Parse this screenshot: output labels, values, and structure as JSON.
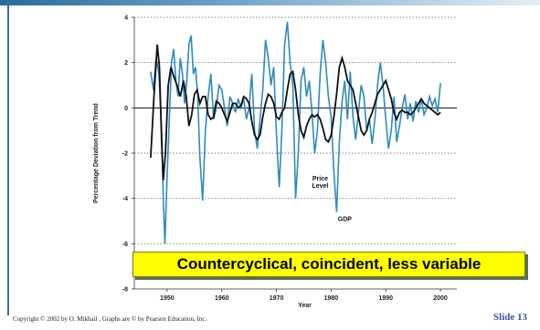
{
  "slide": {
    "callout": "Countercyclical, coincident, less variable",
    "copyright": "Copyright © 2002 by O. Mikhail , Graphs are © by Pearson Education, Inc.",
    "slide_number": "Slide 13",
    "colors": {
      "price_level": "#2e8bbf",
      "gdp": "#111111",
      "callout_bg": "#ffff00",
      "accent": "#3b6f9f"
    }
  },
  "chart_data": {
    "type": "line",
    "title": "",
    "xlabel": "Year",
    "ylabel": "Percentage Deviation from Trend",
    "xlim": [
      1944,
      2003
    ],
    "ylim": [
      -8,
      4
    ],
    "x_ticks": [
      "1950",
      "1960",
      "1970",
      "1980",
      "1990",
      "2000"
    ],
    "y_ticks": [
      "4",
      "2",
      "0",
      "-2",
      "-4",
      "-6",
      "-8"
    ],
    "grid": "horizontal dotted",
    "series": [
      {
        "name": "Price Level",
        "x": [
          1947,
          1947.5,
          1948,
          1948.5,
          1949,
          1949.3,
          1949.6,
          1950,
          1950.4,
          1950.8,
          1951.2,
          1951.6,
          1952,
          1952.4,
          1952.8,
          1953.2,
          1953.6,
          1954,
          1954.4,
          1954.8,
          1955.2,
          1955.6,
          1956,
          1956.5,
          1957,
          1957.5,
          1958,
          1958.5,
          1959,
          1959.5,
          1960,
          1960.5,
          1961,
          1961.5,
          1962,
          1962.5,
          1963,
          1963.5,
          1964,
          1964.5,
          1965,
          1965.5,
          1966,
          1966.5,
          1967,
          1967.5,
          1968,
          1968.5,
          1969,
          1969.5,
          1970,
          1970.5,
          1971,
          1971.5,
          1972,
          1972.5,
          1973,
          1973.5,
          1974,
          1974.5,
          1975,
          1975.5,
          1976,
          1976.5,
          1977,
          1977.5,
          1978,
          1978.5,
          1979,
          1979.5,
          1980,
          1980.5,
          1981,
          1981.5,
          1982,
          1982.5,
          1983,
          1983.5,
          1984,
          1984.5,
          1985,
          1985.5,
          1986,
          1986.5,
          1987,
          1987.5,
          1988,
          1988.5,
          1989,
          1989.5,
          1990,
          1990.5,
          1991,
          1991.5,
          1992,
          1992.5,
          1993,
          1993.5,
          1994,
          1994.5,
          1995,
          1995.5,
          1996,
          1996.5,
          1997,
          1997.5,
          1998,
          1998.5,
          1999,
          1999.5,
          2000
        ],
        "values": [
          1.6,
          0.8,
          2.2,
          1.5,
          -1.0,
          -4.0,
          -6.0,
          -3.0,
          -0.5,
          2.0,
          2.6,
          1.2,
          0.5,
          2.2,
          1.5,
          0.2,
          1.2,
          2.8,
          3.2,
          1.5,
          1.8,
          0.5,
          -2.2,
          -4.1,
          -1.0,
          0.5,
          1.5,
          -0.5,
          0.0,
          1.0,
          0.8,
          0.0,
          -0.8,
          0.5,
          0.2,
          -0.2,
          0.4,
          0.0,
          0.4,
          -0.5,
          0.0,
          1.5,
          -1.0,
          -1.8,
          -0.5,
          0.8,
          3.0,
          2.2,
          1.0,
          1.8,
          -1.2,
          -3.5,
          -1.0,
          2.8,
          3.8,
          2.0,
          1.0,
          -4.0,
          -2.0,
          1.2,
          1.8,
          0.5,
          1.2,
          -0.2,
          -2.0,
          -1.0,
          1.5,
          3.0,
          2.0,
          0.5,
          -0.4,
          -2.8,
          -4.6,
          -1.5,
          0.3,
          1.2,
          -0.5,
          1.6,
          -0.4,
          -1.4,
          -0.2,
          1.0,
          0.5,
          -1.0,
          -0.5,
          -1.6,
          -0.5,
          1.0,
          2.0,
          1.0,
          -0.5,
          -1.8,
          -1.0,
          0.5,
          -1.5,
          -0.8,
          0.0,
          0.6,
          -0.5,
          0.2,
          -0.6,
          0.3,
          -0.2,
          0.4,
          -0.3,
          0.0,
          0.5,
          0.1,
          0.4,
          -0.2,
          1.1
        ]
      },
      {
        "name": "GDP",
        "x": [
          1947,
          1947.6,
          1948.2,
          1948.6,
          1949,
          1949.3,
          1949.7,
          1950.2,
          1950.7,
          1951.2,
          1951.8,
          1952.4,
          1953,
          1953.5,
          1954,
          1954.5,
          1955,
          1955.5,
          1956,
          1956.5,
          1957,
          1957.5,
          1958,
          1958.5,
          1959,
          1959.5,
          1960,
          1960.5,
          1961,
          1961.5,
          1962,
          1962.5,
          1963,
          1963.5,
          1964,
          1964.5,
          1965,
          1965.5,
          1966,
          1966.5,
          1967,
          1967.5,
          1968,
          1968.5,
          1969,
          1969.5,
          1970,
          1970.5,
          1971,
          1971.5,
          1972,
          1972.5,
          1973,
          1973.5,
          1974,
          1974.5,
          1975,
          1975.5,
          1976,
          1976.5,
          1977,
          1977.5,
          1978,
          1978.5,
          1979,
          1979.5,
          1980,
          1980.5,
          1981,
          1981.5,
          1982,
          1982.5,
          1983,
          1983.5,
          1984,
          1984.5,
          1985,
          1985.5,
          1986,
          1986.5,
          1987,
          1987.5,
          1988,
          1988.5,
          1989,
          1989.5,
          1990,
          1990.5,
          1991,
          1991.5,
          1992,
          1992.5,
          1993,
          1993.5,
          1994,
          1994.5,
          1995,
          1995.5,
          1996,
          1996.5,
          1997,
          1997.5,
          1998,
          1998.5,
          1999,
          1999.5,
          2000
        ],
        "values": [
          -2.2,
          0.5,
          2.8,
          1.8,
          -1.5,
          -3.2,
          -2.0,
          1.0,
          1.8,
          1.4,
          1.0,
          0.5,
          1.2,
          0.5,
          -0.8,
          -0.3,
          0.6,
          0.8,
          0.2,
          0.5,
          0.5,
          -0.3,
          -0.5,
          -0.4,
          0.3,
          0.2,
          0.0,
          -0.3,
          -0.6,
          -0.2,
          0.2,
          0.2,
          0.0,
          0.1,
          0.5,
          0.4,
          0.2,
          -0.6,
          -1.2,
          -1.4,
          -1.2,
          -0.4,
          0.2,
          0.6,
          0.5,
          0.2,
          -0.4,
          -0.5,
          -0.2,
          0.0,
          0.8,
          1.5,
          1.6,
          0.8,
          -0.3,
          -1.0,
          -1.3,
          -0.8,
          -0.5,
          -0.3,
          -0.4,
          -0.3,
          -0.5,
          -0.9,
          -1.4,
          -1.5,
          -1.2,
          -0.4,
          0.6,
          1.8,
          2.2,
          1.8,
          1.2,
          1.0,
          0.8,
          0.2,
          -0.4,
          -1.0,
          -1.2,
          -1.0,
          -0.5,
          -0.2,
          0.2,
          0.6,
          0.8,
          1.0,
          1.2,
          0.8,
          0.4,
          -0.2,
          -0.5,
          -0.2,
          -0.1,
          -0.2,
          -0.2,
          -0.3,
          -0.2,
          0.0,
          0.2,
          0.4,
          0.2,
          0.1,
          0.0,
          -0.1,
          -0.2,
          -0.3,
          -0.2
        ]
      }
    ],
    "annotations": [
      {
        "text": "Price Level",
        "lines": [
          "Price",
          "Level"
        ],
        "x": 1978,
        "y": -3.2
      },
      {
        "text": "GDP",
        "lines": [
          "GDP"
        ],
        "x": 1982.5,
        "y": -5.0
      }
    ]
  }
}
